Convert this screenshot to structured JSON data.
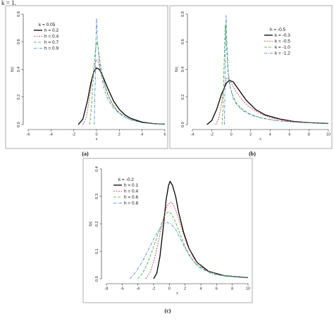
{
  "top_fragment": "k = 1.",
  "chart_data": [
    {
      "type": "line",
      "caption": "(a)",
      "xlabel": "x",
      "ylabel": "f(x)",
      "xlim": [
        -6,
        6
      ],
      "ylim": [
        0,
        0.8
      ],
      "xticks": [
        -6,
        -4,
        -2,
        0,
        2,
        4,
        6
      ],
      "yticks": [
        0.0,
        0.2,
        0.4,
        0.6,
        0.8
      ],
      "legend_title": "k = 0.05",
      "legend_position": "top-left",
      "series": [
        {
          "name": "h = 0.2",
          "color": "#000000",
          "dash": "",
          "width": 1.3,
          "x": [
            -1.6,
            -1.2,
            -0.8,
            -0.5,
            -0.25,
            0.0,
            0.25,
            0.5,
            1.0,
            1.5,
            2.0,
            2.5,
            3.0,
            4.0,
            5.0,
            6.0
          ],
          "y": [
            0.0,
            0.04,
            0.17,
            0.3,
            0.38,
            0.41,
            0.4,
            0.36,
            0.26,
            0.17,
            0.11,
            0.07,
            0.045,
            0.018,
            0.007,
            0.003
          ]
        },
        {
          "name": "h = 0.4",
          "color": "#c0304a",
          "dash": "2,1.5",
          "width": 0.8,
          "x": [
            -1.2,
            -0.9,
            -0.6,
            -0.35,
            -0.15,
            0.0,
            0.15,
            0.4,
            0.8,
            1.2,
            1.8,
            2.5,
            3.0,
            4.0,
            5.0,
            6.0
          ],
          "y": [
            0.0,
            0.05,
            0.2,
            0.35,
            0.44,
            0.47,
            0.45,
            0.38,
            0.27,
            0.18,
            0.1,
            0.055,
            0.035,
            0.014,
            0.006,
            0.003
          ]
        },
        {
          "name": "h = 0.7",
          "color": "#33aa33",
          "dash": "4,2",
          "width": 0.8,
          "x": [
            -0.6,
            -0.45,
            -0.3,
            -0.15,
            0.0,
            0.12,
            0.3,
            0.6,
            1.0,
            1.5,
            2.0,
            2.5,
            3.0,
            4.0,
            5.0,
            6.0
          ],
          "y": [
            0.0,
            0.12,
            0.32,
            0.5,
            0.6,
            0.57,
            0.46,
            0.32,
            0.21,
            0.13,
            0.085,
            0.055,
            0.035,
            0.014,
            0.006,
            0.003
          ]
        },
        {
          "name": "h = 0.9",
          "color": "#3a7fc0",
          "dash": "4,1.5,1,1.5",
          "width": 0.8,
          "x": [
            -0.2,
            -0.12,
            -0.05,
            0.0,
            0.06,
            0.2,
            0.4,
            0.7,
            1.0,
            1.5,
            2.0,
            2.5,
            3.0,
            4.0,
            5.0,
            6.0
          ],
          "y": [
            0.0,
            0.3,
            0.62,
            0.77,
            0.65,
            0.48,
            0.36,
            0.25,
            0.18,
            0.12,
            0.08,
            0.055,
            0.035,
            0.014,
            0.006,
            0.003
          ]
        }
      ]
    },
    {
      "type": "line",
      "caption": "(b)",
      "xlabel": "x",
      "ylabel": "f(x)",
      "xlim": [
        -4,
        10
      ],
      "ylim": [
        0,
        0.8
      ],
      "xticks": [
        -4,
        -2,
        0,
        2,
        4,
        6,
        8,
        10
      ],
      "yticks": [
        0.0,
        0.2,
        0.4,
        0.6,
        0.8
      ],
      "legend_title": "h = -0.5",
      "legend_position": "top-right",
      "series": [
        {
          "name": "k = -0.3",
          "color": "#000000",
          "dash": "",
          "width": 1.3,
          "x": [
            -2.5,
            -2.0,
            -1.5,
            -1.0,
            -0.5,
            -0.2,
            0.2,
            0.7,
            1.5,
            2.5,
            3.5,
            5.0,
            6.5,
            8.0,
            10.0
          ],
          "y": [
            0.0,
            0.03,
            0.11,
            0.22,
            0.3,
            0.32,
            0.31,
            0.26,
            0.18,
            0.11,
            0.07,
            0.04,
            0.022,
            0.014,
            0.008
          ]
        },
        {
          "name": "k = -0.5",
          "color": "#c0304a",
          "dash": "2,1.5",
          "width": 0.8,
          "x": [
            -1.6,
            -1.3,
            -1.0,
            -0.7,
            -0.45,
            -0.2,
            0.1,
            0.5,
            1.0,
            1.8,
            2.8,
            4.0,
            5.5,
            7.5,
            10.0
          ],
          "y": [
            0.0,
            0.04,
            0.15,
            0.28,
            0.34,
            0.33,
            0.29,
            0.24,
            0.19,
            0.13,
            0.085,
            0.05,
            0.03,
            0.018,
            0.01
          ]
        },
        {
          "name": "k = -1.0",
          "color": "#33aa33",
          "dash": "4,2",
          "width": 0.8,
          "x": [
            -0.95,
            -0.85,
            -0.75,
            -0.62,
            -0.5,
            -0.35,
            -0.2,
            0.1,
            0.5,
            1.0,
            1.8,
            3.0,
            4.5,
            7.0,
            10.0
          ],
          "y": [
            0.0,
            0.12,
            0.4,
            0.72,
            0.6,
            0.4,
            0.3,
            0.22,
            0.16,
            0.12,
            0.08,
            0.05,
            0.03,
            0.016,
            0.008
          ]
        },
        {
          "name": "k = -1.2",
          "color": "#3a7fc0",
          "dash": "4,1.5,1,1.5",
          "width": 0.8,
          "x": [
            -0.7,
            -0.64,
            -0.58,
            -0.52,
            -0.44,
            -0.3,
            -0.1,
            0.2,
            0.6,
            1.2,
            2.0,
            3.2,
            5.0,
            7.5,
            10.0
          ],
          "y": [
            0.0,
            0.3,
            0.66,
            0.79,
            0.58,
            0.38,
            0.27,
            0.19,
            0.14,
            0.1,
            0.07,
            0.045,
            0.026,
            0.014,
            0.007
          ]
        }
      ]
    },
    {
      "type": "line",
      "caption": "(c)",
      "xlabel": "x",
      "ylabel": "f(x)",
      "xlim": [
        -8,
        10
      ],
      "ylim": [
        0,
        0.4
      ],
      "xticks": [
        -8,
        -6,
        -4,
        -2,
        0,
        2,
        4,
        6,
        8,
        10
      ],
      "yticks": [
        0.0,
        0.1,
        0.2,
        0.3,
        0.4
      ],
      "legend_title": "k = -0.2",
      "legend_position": "top-left",
      "series": [
        {
          "name": "h = 0.1",
          "color": "#000000",
          "dash": "",
          "width": 1.3,
          "x": [
            -2.0,
            -1.6,
            -1.2,
            -0.8,
            -0.4,
            -0.1,
            0.1,
            0.4,
            0.8,
            1.2,
            1.8,
            2.5,
            3.5,
            5.0,
            7.0,
            10.0
          ],
          "y": [
            0.0,
            0.02,
            0.08,
            0.18,
            0.29,
            0.34,
            0.355,
            0.34,
            0.3,
            0.24,
            0.17,
            0.11,
            0.06,
            0.027,
            0.011,
            0.004
          ]
        },
        {
          "name": "h = 0.4",
          "color": "#c0304a",
          "dash": "2,1.5",
          "width": 0.8,
          "x": [
            -3.0,
            -2.5,
            -2.0,
            -1.5,
            -1.0,
            -0.6,
            -0.2,
            0.2,
            0.6,
            1.0,
            1.6,
            2.3,
            3.2,
            4.5,
            6.5,
            10.0
          ],
          "y": [
            0.0,
            0.02,
            0.06,
            0.12,
            0.19,
            0.24,
            0.27,
            0.28,
            0.265,
            0.235,
            0.18,
            0.12,
            0.07,
            0.033,
            0.013,
            0.004
          ]
        },
        {
          "name": "h = 0.6",
          "color": "#33aa33",
          "dash": "4,2",
          "width": 0.8,
          "x": [
            -4.0,
            -3.4,
            -2.8,
            -2.2,
            -1.6,
            -1.0,
            -0.5,
            -0.1,
            0.3,
            0.8,
            1.4,
            2.1,
            3.0,
            4.5,
            6.5,
            10.0
          ],
          "y": [
            0.0,
            0.02,
            0.055,
            0.1,
            0.15,
            0.2,
            0.235,
            0.245,
            0.235,
            0.205,
            0.16,
            0.11,
            0.065,
            0.03,
            0.012,
            0.004
          ]
        },
        {
          "name": "h = 0.8",
          "color": "#3a7fc0",
          "dash": "4,1.5,1,1.5",
          "width": 0.8,
          "x": [
            -5.0,
            -4.4,
            -3.8,
            -3.2,
            -2.6,
            -2.0,
            -1.4,
            -0.8,
            -0.3,
            0.2,
            0.8,
            1.5,
            2.4,
            3.6,
            5.5,
            10.0
          ],
          "y": [
            0.0,
            0.02,
            0.045,
            0.075,
            0.11,
            0.145,
            0.175,
            0.195,
            0.205,
            0.2,
            0.18,
            0.14,
            0.09,
            0.045,
            0.016,
            0.004
          ]
        }
      ]
    }
  ]
}
